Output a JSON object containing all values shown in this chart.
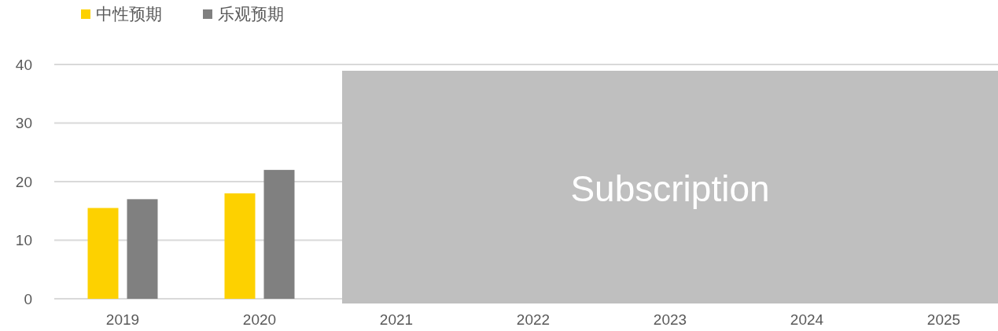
{
  "chart_data": {
    "type": "bar",
    "categories": [
      "2019",
      "2020",
      "2021",
      "2022",
      "2023",
      "2024",
      "2025"
    ],
    "series": [
      {
        "name": "中性预期",
        "color": "#fdd100",
        "values": [
          15.5,
          18,
          null,
          null,
          null,
          null,
          null
        ]
      },
      {
        "name": "乐观预期",
        "color": "#808080",
        "values": [
          17,
          22,
          null,
          null,
          null,
          null,
          null
        ]
      }
    ],
    "ylim": [
      0,
      40
    ],
    "yticks": [
      0,
      10,
      20,
      30,
      40
    ],
    "grid": "y",
    "legend": "top left",
    "bands": [
      {
        "axis": "x",
        "from": "2021",
        "to": "2025",
        "label": "Subscription",
        "color": "#bfbfbf"
      }
    ]
  }
}
